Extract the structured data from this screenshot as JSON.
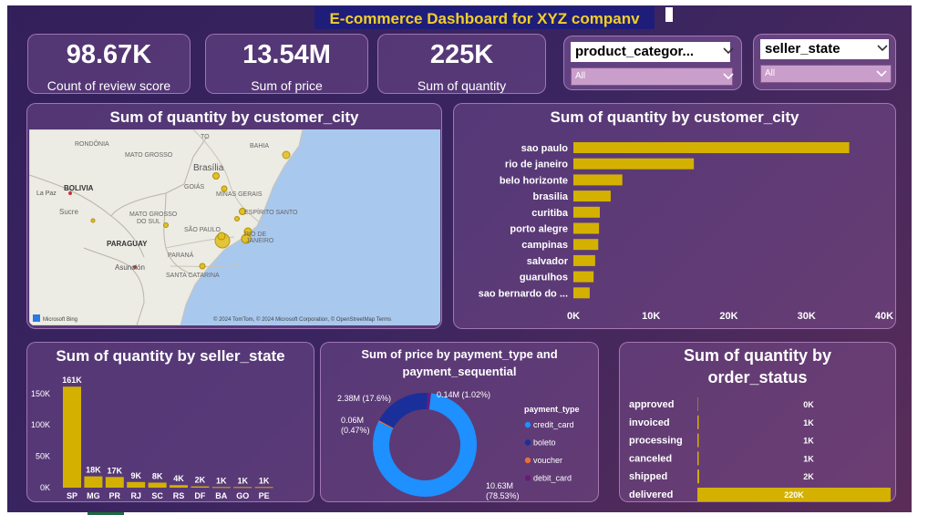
{
  "header": {
    "title": "E-commerce Dashboard for XYZ companv"
  },
  "kpis": [
    {
      "value": "98.67K",
      "label": "Count of review score"
    },
    {
      "value": "13.54M",
      "label": "Sum of price"
    },
    {
      "value": "225K",
      "label": "Sum of quantity"
    }
  ],
  "slicers": [
    {
      "field": "product_categor...",
      "selected": "All"
    },
    {
      "field": "seller_state",
      "selected": "All"
    }
  ],
  "map": {
    "title": "Sum of quantity by customer_city",
    "labels": {
      "rondonia": "RONDÔNIA",
      "mato_grosso": "MATO GROSSO",
      "to": "TO",
      "bahia": "BAHIA",
      "brasilia": "Brasília",
      "goias": "GOIÁS",
      "minas": "MINAS GERAIS",
      "bolivia": "BOLIVIA",
      "lapaz": "La Paz",
      "sucre": "Sucre",
      "ms1": "MATO GROSSO",
      "ms2": "DO SUL",
      "es": "ESPÍRITO SANTO",
      "sp": "SÃO PAULO",
      "paraguay": "PARAGUAY",
      "rio": "RIO DE",
      "janeiro": "JANEIRO",
      "parana": "PARANÁ",
      "asuncion": "Asunción",
      "sc": "SANTA CATARINA"
    },
    "attribution": "© 2024 TomTom, © 2024 Microsoft Corporation, © OpenStreetMap  Terms",
    "logo": "Microsoft Bing"
  },
  "chart_data": [
    {
      "type": "bar",
      "orientation": "horizontal",
      "title": "Sum of quantity by customer_city",
      "categories": [
        "sao paulo",
        "rio de janeiro",
        "belo horizonte",
        "brasilia",
        "curitiba",
        "porto alegre",
        "campinas",
        "salvador",
        "guarulhos",
        "sao bernardo do ..."
      ],
      "values": [
        35500,
        15500,
        6300,
        4800,
        3400,
        3300,
        3200,
        2800,
        2600,
        2100
      ],
      "xlim": [
        0,
        40000
      ],
      "tick_labels": [
        "0K",
        "10K",
        "20K",
        "30K",
        "40K"
      ],
      "color": "#d4b100"
    },
    {
      "type": "bar",
      "title": "Sum of quantity by seller_state",
      "categories": [
        "SP",
        "MG",
        "PR",
        "RJ",
        "SC",
        "RS",
        "DF",
        "BA",
        "GO",
        "PE"
      ],
      "values": [
        161000,
        18000,
        17000,
        9000,
        8000,
        4000,
        2000,
        1000,
        1000,
        1000
      ],
      "data_labels": [
        "161K",
        "18K",
        "17K",
        "9K",
        "8K",
        "4K",
        "2K",
        "1K",
        "1K",
        "1K"
      ],
      "ylim": [
        0,
        170000
      ],
      "tick_values": [
        0,
        50000,
        100000,
        150000
      ],
      "tick_labels": [
        "0K",
        "50K",
        "100K",
        "150K"
      ],
      "color": "#d4b100"
    },
    {
      "type": "pie",
      "title": "Sum of price by payment_type and payment_sequential",
      "legend_title": "payment_type",
      "series": [
        {
          "name": "credit_card",
          "value": 10.63,
          "label": "10.63M (78.53%)",
          "color": "#1e90ff"
        },
        {
          "name": "boleto",
          "value": 2.38,
          "label": "2.38M (17.6%)",
          "color": "#1a2f9a"
        },
        {
          "name": "voucher",
          "value": 0.06,
          "label": "0.06M (0.47%)",
          "color": "#e8703a"
        },
        {
          "name": "debit_card",
          "value": 0.14,
          "label": "0.14M (1.02%)",
          "color": "#6b1a7a"
        }
      ],
      "units": "M",
      "legend": [
        "credit_card",
        "boleto",
        "voucher",
        "debit_card"
      ]
    },
    {
      "type": "bar",
      "orientation": "horizontal",
      "title": "Sum of quantity by order_status",
      "categories": [
        "approved",
        "invoiced",
        "processing",
        "canceled",
        "shipped",
        "delivered"
      ],
      "values": [
        0,
        1000,
        1000,
        1000,
        2000,
        220000
      ],
      "data_labels": [
        "0K",
        "1K",
        "1K",
        "1K",
        "2K",
        "220K"
      ],
      "xlim": [
        0,
        220000
      ],
      "color": "#d4b100"
    }
  ],
  "titles": {
    "city_bar": "Sum of quantity by customer_city",
    "seller_state": "Sum of quantity by seller_state",
    "donut_line1": "Sum of price by payment_type and",
    "donut_line2": "payment_sequential",
    "status_line1": "Sum of quantity by",
    "status_line2": "order_status"
  }
}
